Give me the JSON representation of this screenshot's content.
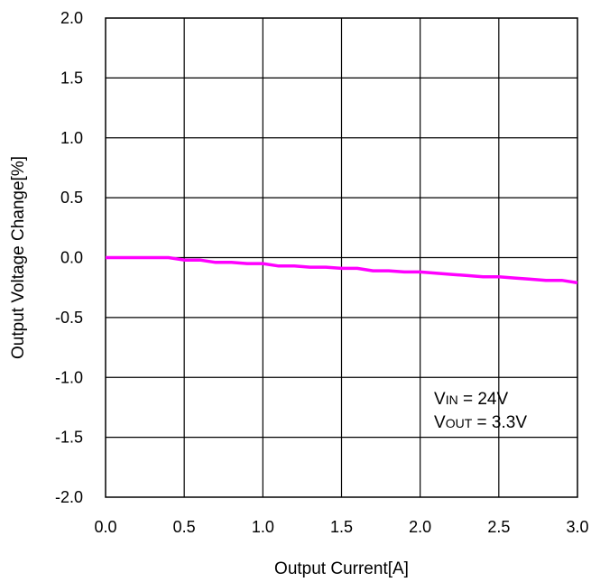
{
  "chart_data": {
    "type": "line",
    "xlabel": "Output Current[A]",
    "ylabel": "Output Voltage Change[%]",
    "xlim": [
      0.0,
      3.0
    ],
    "ylim": [
      -2.0,
      2.0
    ],
    "xticks": [
      "0.0",
      "0.5",
      "1.0",
      "1.5",
      "2.0",
      "2.5",
      "3.0"
    ],
    "yticks": [
      "2.0",
      "1.5",
      "1.0",
      "0.5",
      "0.0",
      "-0.5",
      "-1.0",
      "-1.5",
      "-2.0"
    ],
    "grid": true,
    "series_color": "#ff00ff",
    "series": [
      {
        "x": [
          0.0,
          0.1,
          0.2,
          0.3,
          0.4,
          0.5,
          0.6,
          0.7,
          0.8,
          0.9,
          1.0,
          1.1,
          1.2,
          1.3,
          1.4,
          1.5,
          1.6,
          1.7,
          1.8,
          1.9,
          2.0,
          2.1,
          2.2,
          2.3,
          2.4,
          2.5,
          2.6,
          2.7,
          2.8,
          2.9,
          3.0
        ],
        "values": [
          0.0,
          0.0,
          0.0,
          0.0,
          0.0,
          -0.02,
          -0.02,
          -0.04,
          -0.04,
          -0.05,
          -0.05,
          -0.07,
          -0.07,
          -0.08,
          -0.08,
          -0.09,
          -0.09,
          -0.11,
          -0.11,
          -0.12,
          -0.12,
          -0.13,
          -0.14,
          -0.15,
          -0.16,
          -0.16,
          -0.17,
          -0.18,
          -0.19,
          -0.19,
          -0.21
        ]
      }
    ],
    "annotation": {
      "line1_main": "V",
      "line1_sub": "IN",
      "line1_rest": " = 24V",
      "line2_main": "V",
      "line2_sub": "OUT",
      "line2_rest": " = 3.3V"
    }
  }
}
